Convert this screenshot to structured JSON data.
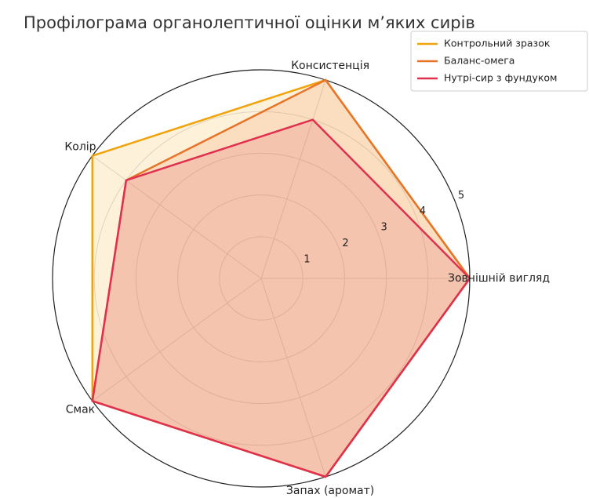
{
  "chart_data": {
    "type": "radar",
    "title": "Профілограма органолептичної оцінки м’яких сирів",
    "categories": [
      "Зовнішній вигляд",
      "Консистенція",
      "Колір",
      "Смак",
      "Запах (аромат)"
    ],
    "series": [
      {
        "name": "Контрольний зразок",
        "color": "#f0a30a",
        "values": [
          5,
          5,
          5,
          5,
          5
        ]
      },
      {
        "name": "Баланс-омега",
        "color": "#e8742a",
        "values": [
          5,
          5,
          4,
          5,
          5
        ]
      },
      {
        "name": "Нутрі-сир з фундуком",
        "color": "#e0304f",
        "values": [
          5,
          4,
          4,
          5,
          5
        ]
      }
    ],
    "ylim": [
      0,
      5
    ],
    "yticks": [
      1,
      2,
      3,
      4,
      5
    ],
    "grid": true,
    "legend": "upper right"
  }
}
